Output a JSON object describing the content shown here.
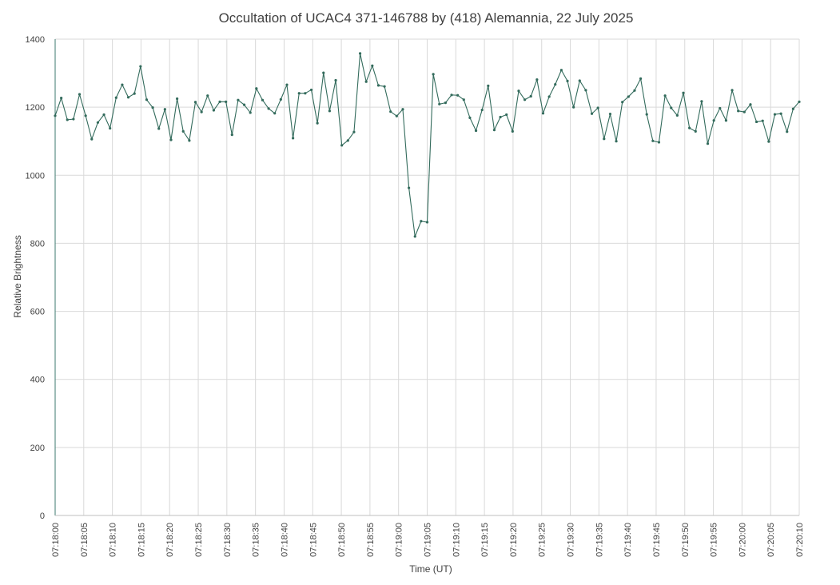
{
  "colors": {
    "series": "#336b5c",
    "grid": "#d9d9d9",
    "text": "#404040"
  },
  "chart_data": {
    "type": "line",
    "title": "Occultation of UCAC4 371-146788 by (418) Alemannia, 22 July 2025",
    "xlabel": "Time (UT)",
    "ylabel": "Relative  Brightness",
    "ylim": [
      0,
      1400
    ],
    "yticks": [
      "0",
      "200",
      "400",
      "600",
      "800",
      "1000",
      "1200",
      "1400"
    ],
    "xrange_seconds": [
      0,
      130
    ],
    "xticks": [
      "07:18:00",
      "07:18:05",
      "07:18:10",
      "07:18:15",
      "07:18:20",
      "07:18:25",
      "07:18:30",
      "07:18:35",
      "07:18:40",
      "07:18:45",
      "07:18:50",
      "07:18:55",
      "07:19:00",
      "07:19:05",
      "07:19:10",
      "07:19:15",
      "07:19:20",
      "07:19:25",
      "07:19:30",
      "07:19:35",
      "07:19:40",
      "07:19:45",
      "07:19:50",
      "07:19:55",
      "07:20:00",
      "07:20:05",
      "07:20:10"
    ],
    "grid": true,
    "legend": "none",
    "series": [
      {
        "values": [
          1175,
          1227,
          1163,
          1165,
          1238,
          1175,
          1106,
          1155,
          1178,
          1138,
          1228,
          1266,
          1229,
          1240,
          1320,
          1222,
          1199,
          1137,
          1194,
          1104,
          1225,
          1129,
          1102,
          1215,
          1186,
          1234,
          1191,
          1216,
          1216,
          1119,
          1221,
          1207,
          1184,
          1255,
          1221,
          1196,
          1182,
          1223,
          1266,
          1109,
          1241,
          1241,
          1251,
          1153,
          1301,
          1189,
          1279,
          1088,
          1102,
          1127,
          1358,
          1275,
          1322,
          1264,
          1261,
          1187,
          1174,
          1194,
          963,
          820,
          865,
          862,
          1297,
          1209,
          1213,
          1236,
          1235,
          1222,
          1169,
          1131,
          1192,
          1263,
          1133,
          1171,
          1178,
          1129,
          1248,
          1222,
          1232,
          1281,
          1182,
          1231,
          1267,
          1309,
          1277,
          1200,
          1278,
          1250,
          1181,
          1198,
          1107,
          1180,
          1100,
          1215,
          1231,
          1249,
          1284,
          1179,
          1101,
          1097,
          1234,
          1198,
          1176,
          1242,
          1139,
          1129,
          1217,
          1093,
          1161,
          1197,
          1161,
          1250,
          1189,
          1186,
          1208,
          1157,
          1160,
          1099,
          1179,
          1181,
          1128,
          1195,
          1216
        ]
      }
    ]
  }
}
